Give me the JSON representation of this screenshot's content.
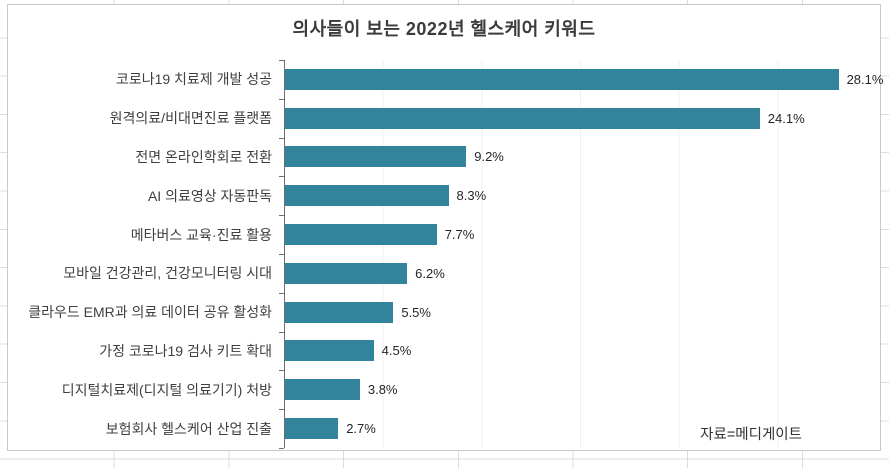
{
  "chart_data": {
    "type": "bar",
    "orientation": "horizontal",
    "title": "의사들이 보는 2022년 헬스케어 키워드",
    "categories": [
      "코로나19 치료제 개발 성공",
      "원격의료/비대면진료 플랫폼",
      "전면 온라인학회로 전환",
      "AI 의료영상 자동판독",
      "메타버스 교육·진료 활용",
      "모바일 건강관리, 건강모니터링 시대",
      "클라우드 EMR과 의료 데이터 공유 활성화",
      "가정 코로나19 검사 키트 확대",
      "디지털치료제(디지털 의료기기) 처방",
      "보험회사 헬스케어 산업 진출"
    ],
    "values": [
      28.1,
      24.1,
      9.2,
      8.3,
      7.7,
      6.2,
      5.5,
      4.5,
      3.8,
      2.7
    ],
    "value_labels": [
      "28.1%",
      "24.1%",
      "9.2%",
      "8.3%",
      "7.7%",
      "6.2%",
      "5.5%",
      "4.5%",
      "3.8%",
      "2.7%"
    ],
    "xlabel": "",
    "ylabel": "",
    "xlim": [
      0,
      30
    ],
    "major_unit": 5,
    "grid": "faint-vertical-major",
    "legend": "none",
    "bar_color": "#31849B",
    "source_note": "자료=메디게이트"
  }
}
